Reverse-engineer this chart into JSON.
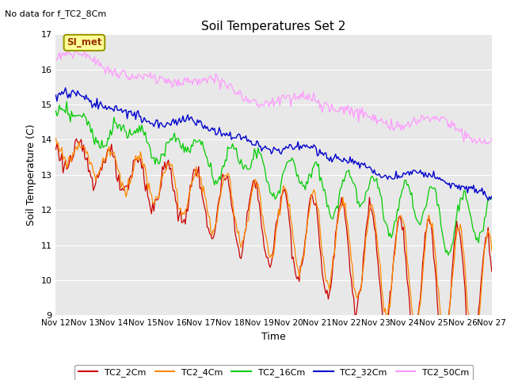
{
  "title": "Soil Temperatures Set 2",
  "subtitle": "No data for f_TC2_8Cm",
  "xlabel": "Time",
  "ylabel": "Soil Temperature (C)",
  "ylim": [
    9.0,
    17.0
  ],
  "yticks": [
    9.0,
    10.0,
    11.0,
    12.0,
    13.0,
    14.0,
    15.0,
    16.0,
    17.0
  ],
  "xlim": [
    0,
    360
  ],
  "xtick_positions": [
    0,
    24,
    48,
    72,
    96,
    120,
    144,
    168,
    192,
    216,
    240,
    264,
    288,
    312,
    336,
    360
  ],
  "xtick_labels": [
    "Nov 12",
    "Nov 13",
    "Nov 14",
    "Nov 15",
    "Nov 16",
    "Nov 17",
    "Nov 18",
    "Nov 19",
    "Nov 20",
    "Nov 21",
    "Nov 22",
    "Nov 23",
    "Nov 24",
    "Nov 25",
    "Nov 26",
    "Nov 27"
  ],
  "legend_labels": [
    "TC2_2Cm",
    "TC2_4Cm",
    "TC2_16Cm",
    "TC2_32Cm",
    "TC2_50Cm"
  ],
  "colors": {
    "TC2_2Cm": "#CC0000",
    "TC2_4Cm": "#FF8800",
    "TC2_16Cm": "#00CC00",
    "TC2_32Cm": "#0000CC",
    "TC2_50Cm": "#FF99FF"
  },
  "plot_bg_color": "#E8E8E8",
  "fig_bg_color": "#FFFFFF",
  "annotation_text": "SI_met",
  "annotation_color": "#993300",
  "annotation_bg": "#FFFF99",
  "annotation_border": "#999900",
  "grid_color": "#FFFFFF"
}
